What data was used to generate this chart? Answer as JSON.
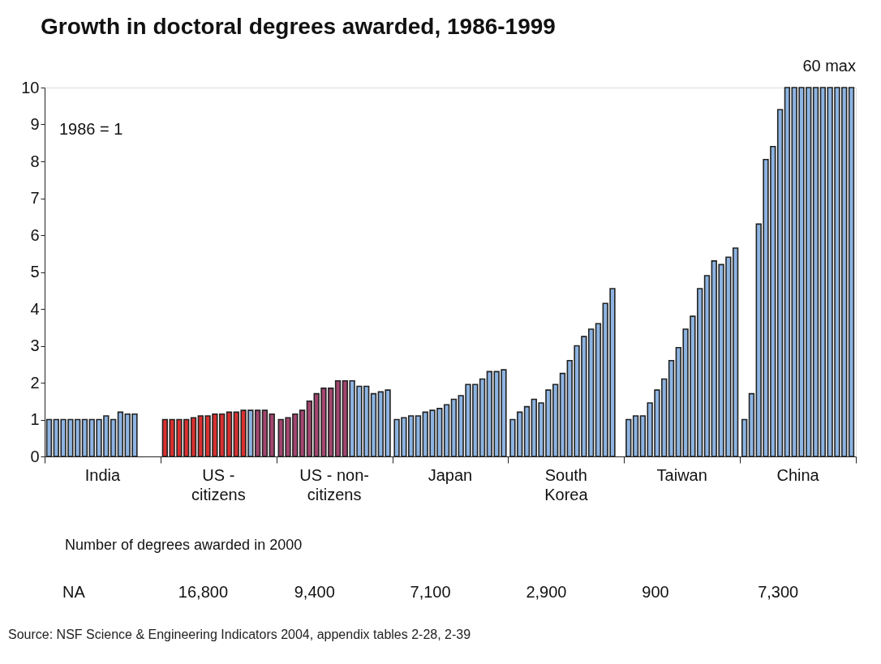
{
  "chart_data": {
    "type": "bar",
    "title": "Growth in doctoral degrees awarded, 1986-1999",
    "categories": [
      "India",
      "US - citizens",
      "US - non-citizens",
      "Japan",
      "South Korea",
      "Taiwan",
      "China"
    ],
    "series": [
      {
        "values": [
          1.0,
          1.0,
          1.0,
          1.0,
          1.0,
          1.0,
          1.0
        ],
        "colors": [
          "#8db4e2",
          "#d93030",
          "#a3466f",
          "#8db4e2",
          "#8db4e2",
          "#8db4e2",
          "#8db4e2"
        ]
      },
      {
        "values": [
          1.0,
          1.0,
          1.05,
          1.05,
          1.2,
          1.1,
          1.7
        ],
        "colors": [
          "#8db4e2",
          "#d93030",
          "#a3466f",
          "#8db4e2",
          "#8db4e2",
          "#8db4e2",
          "#8db4e2"
        ]
      },
      {
        "values": [
          1.0,
          1.0,
          1.15,
          1.1,
          1.35,
          1.1,
          6.3
        ],
        "colors": [
          "#8db4e2",
          "#d93030",
          "#a3466f",
          "#8db4e2",
          "#8db4e2",
          "#8db4e2",
          "#8db4e2"
        ]
      },
      {
        "values": [
          1.0,
          1.0,
          1.25,
          1.1,
          1.55,
          1.45,
          8.05
        ],
        "colors": [
          "#8db4e2",
          "#d93030",
          "#a3466f",
          "#8db4e2",
          "#8db4e2",
          "#8db4e2",
          "#8db4e2"
        ]
      },
      {
        "values": [
          1.0,
          1.05,
          1.5,
          1.2,
          1.45,
          1.8,
          8.4
        ],
        "colors": [
          "#8db4e2",
          "#d93030",
          "#a3466f",
          "#8db4e2",
          "#8db4e2",
          "#8db4e2",
          "#8db4e2"
        ]
      },
      {
        "values": [
          1.0,
          1.1,
          1.7,
          1.25,
          1.8,
          2.1,
          9.4
        ],
        "colors": [
          "#8db4e2",
          "#d93030",
          "#a3466f",
          "#8db4e2",
          "#8db4e2",
          "#8db4e2",
          "#8db4e2"
        ]
      },
      {
        "values": [
          1.0,
          1.1,
          1.85,
          1.3,
          1.95,
          2.6,
          10
        ],
        "colors": [
          "#8db4e2",
          "#d93030",
          "#a3466f",
          "#8db4e2",
          "#8db4e2",
          "#8db4e2",
          "#8db4e2"
        ]
      },
      {
        "values": [
          1.0,
          1.15,
          1.85,
          1.4,
          2.25,
          2.95,
          10
        ],
        "colors": [
          "#8db4e2",
          "#d93030",
          "#a3466f",
          "#8db4e2",
          "#8db4e2",
          "#8db4e2",
          "#8db4e2"
        ]
      },
      {
        "values": [
          1.1,
          1.15,
          2.05,
          1.55,
          2.6,
          3.45,
          10
        ],
        "colors": [
          "#8db4e2",
          "#d93030",
          "#a3466f",
          "#8db4e2",
          "#8db4e2",
          "#8db4e2",
          "#8db4e2"
        ]
      },
      {
        "values": [
          1.0,
          1.2,
          2.05,
          1.65,
          3.0,
          3.8,
          10
        ],
        "colors": [
          "#8db4e2",
          "#d93030",
          "#a3466f",
          "#8db4e2",
          "#8db4e2",
          "#8db4e2",
          "#8db4e2"
        ]
      },
      {
        "values": [
          1.2,
          1.2,
          2.05,
          1.95,
          3.25,
          4.55,
          10
        ],
        "colors": [
          "#8db4e2",
          "#d93030",
          "#8db4e2",
          "#8db4e2",
          "#8db4e2",
          "#8db4e2",
          "#8db4e2"
        ]
      },
      {
        "values": [
          1.15,
          1.25,
          1.9,
          1.95,
          3.45,
          4.9,
          10
        ],
        "colors": [
          "#8db4e2",
          "#d93030",
          "#8db4e2",
          "#8db4e2",
          "#8db4e2",
          "#8db4e2",
          "#8db4e2"
        ]
      },
      {
        "values": [
          1.15,
          1.25,
          1.9,
          2.1,
          3.6,
          5.3,
          10
        ],
        "colors": [
          "#8db4e2",
          "#8db4e2",
          "#8db4e2",
          "#8db4e2",
          "#8db4e2",
          "#8db4e2",
          "#8db4e2"
        ]
      },
      {
        "values": [
          null,
          1.25,
          1.7,
          2.3,
          4.15,
          5.2,
          10
        ],
        "colors": [
          "#8db4e2",
          "#a3466f",
          "#8db4e2",
          "#8db4e2",
          "#8db4e2",
          "#8db4e2",
          "#8db4e2"
        ]
      },
      {
        "values": [
          null,
          1.25,
          1.75,
          2.3,
          4.55,
          5.4,
          10
        ],
        "colors": [
          "#8db4e2",
          "#a3466f",
          "#8db4e2",
          "#8db4e2",
          "#8db4e2",
          "#8db4e2",
          "#8db4e2"
        ]
      },
      {
        "values": [
          null,
          1.15,
          1.8,
          2.35,
          null,
          5.65,
          10
        ],
        "colors": [
          "#8db4e2",
          "#a3466f",
          "#8db4e2",
          "#8db4e2",
          "#8db4e2",
          "#8db4e2",
          "#8db4e2"
        ]
      }
    ],
    "ylim": [
      0,
      10
    ],
    "yticks": [
      0,
      1,
      2,
      3,
      4,
      5,
      6,
      7,
      8,
      9,
      10
    ],
    "grid": false,
    "annotations": [
      "1986 = 1",
      {
        "text": "60 max",
        "x": "China",
        "y": 10
      },
      "Number of degrees awarded in 2000",
      "NA",
      "16,800",
      "9,400",
      "7,100",
      "2,900",
      "900",
      "7,300",
      "Source: NSF Science & Engineering Indicators 2004, appendix tables 2-28, 2-39"
    ]
  }
}
